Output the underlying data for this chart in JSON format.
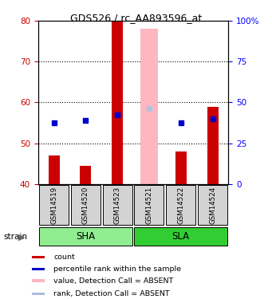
{
  "title": "GDS526 / rc_AA893596_at",
  "samples": [
    "GSM14519",
    "GSM14520",
    "GSM14523",
    "GSM14521",
    "GSM14522",
    "GSM14524"
  ],
  "red_bar_values": [
    47.0,
    44.5,
    80.0,
    40.0,
    48.0,
    59.0
  ],
  "red_bar_colors": [
    "#CC0000",
    "#CC0000",
    "#CC0000",
    "#FFB6C1",
    "#CC0000",
    "#CC0000"
  ],
  "red_bar_widths": [
    0.35,
    0.35,
    0.35,
    0.55,
    0.35,
    0.35
  ],
  "absent_pink_value": 78.0,
  "absent_pink_index": 3,
  "blue_square_values": [
    55.0,
    55.5,
    57.0,
    58.5,
    55.0,
    56.0
  ],
  "blue_square_colors": [
    "#0000CC",
    "#0000CC",
    "#0000CC",
    "#B0C4DE",
    "#0000CC",
    "#0000CC"
  ],
  "ylim_left": [
    40,
    80
  ],
  "ylim_right": [
    0,
    100
  ],
  "yticks_left": [
    40,
    50,
    60,
    70,
    80
  ],
  "ytick_labels_right": [
    "0",
    "25",
    "50",
    "75",
    "100%"
  ],
  "ytick_values_right": [
    0,
    25,
    50,
    75,
    100
  ],
  "bar_base": 40,
  "sample_bg_color": "#D3D3D3",
  "sha_color": "#90EE90",
  "sla_color": "#32CD32",
  "left_axis_color": "#CC0000",
  "right_axis_color": "#0000FF",
  "legend_items": [
    {
      "label": "count",
      "color": "#CC0000"
    },
    {
      "label": "percentile rank within the sample",
      "color": "#0000CC"
    },
    {
      "label": "value, Detection Call = ABSENT",
      "color": "#FFB6C1"
    },
    {
      "label": "rank, Detection Call = ABSENT",
      "color": "#AABBDD"
    }
  ]
}
